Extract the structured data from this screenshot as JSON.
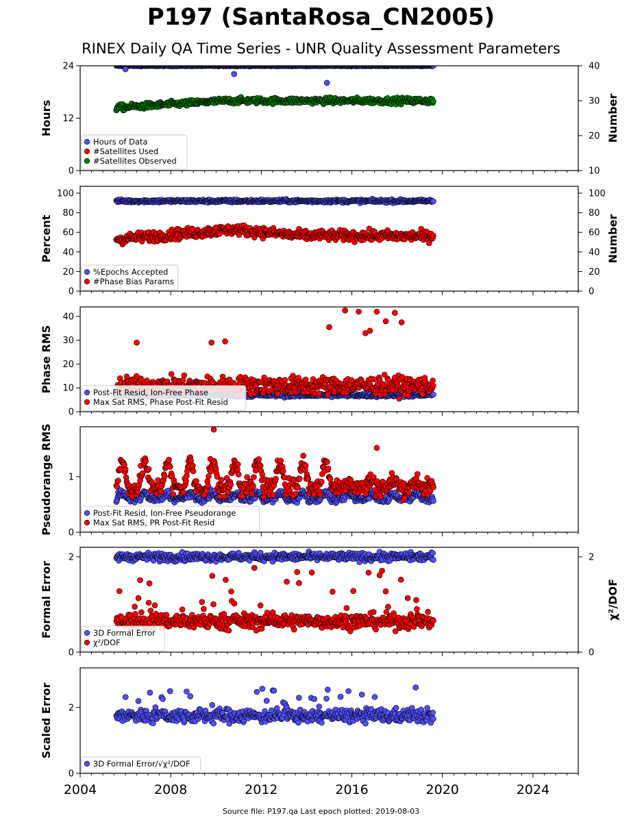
{
  "page": {
    "title": "P197 (SantaRosa_CN2005)",
    "subtitle": "RINEX Daily QA Time Series - UNR Quality Assessment Parameters",
    "source": "Source file: P197.qa Last epoch plotted: 2019-08-03"
  },
  "colors": {
    "blue": "#4f4fff",
    "red": "#ff0000",
    "green": "#008000",
    "edge": "#000000"
  },
  "chart_data": [
    {
      "type": "scatter",
      "xlim": [
        2004,
        2026
      ],
      "x_ticks": [
        "2004",
        "2008",
        "2012",
        "2016",
        "2020",
        "2024"
      ],
      "y_left_label": "Hours",
      "ylim_left": [
        0,
        24
      ],
      "y_left_ticks": [
        "0",
        "12",
        "24"
      ],
      "y_right_label": "Number",
      "ylim_right": [
        10,
        40
      ],
      "y_right_ticks": [
        "10",
        "20",
        "30",
        "40"
      ],
      "legend_position": "lower-left",
      "series": [
        {
          "name": "Hours of Data",
          "color": "blue",
          "axis": "left",
          "x_range": [
            2005.6,
            2019.6
          ],
          "base": 24.0,
          "noise": 0.1,
          "outliers": [
            [
              2006.0,
              23.2
            ],
            [
              2010.8,
              22.1
            ],
            [
              2014.9,
              20.1
            ]
          ]
        },
        {
          "name": "#Satellites Used",
          "color": "red",
          "axis": "right",
          "x_range": [
            2005.6,
            2019.6
          ],
          "points": [
            [
              2009.6,
              30.0
            ]
          ]
        },
        {
          "name": "#Satellites Observed",
          "color": "green",
          "axis": "right",
          "x_range": [
            2005.6,
            2019.6
          ],
          "levels": [
            [
              2005.6,
              28.0
            ],
            [
              2010.5,
              30.0
            ],
            [
              2019.6,
              30.0
            ]
          ],
          "noise": 0.8
        }
      ]
    },
    {
      "type": "scatter",
      "xlim": [
        2004,
        2026
      ],
      "x_ticks": [
        "2004",
        "2008",
        "2012",
        "2016",
        "2020",
        "2024"
      ],
      "y_left_label": "Percent",
      "ylim_left": [
        0,
        107
      ],
      "y_left_ticks": [
        "0",
        "20",
        "40",
        "60",
        "80",
        "100"
      ],
      "y_right_label": "Number",
      "ylim_right": [
        0,
        107
      ],
      "y_right_ticks": [
        "0",
        "20",
        "40",
        "60",
        "80",
        "100"
      ],
      "legend_position": "lower-left",
      "series": [
        {
          "name": "%Epochs Accepted",
          "color": "blue",
          "axis": "left",
          "x_range": [
            2005.6,
            2019.6
          ],
          "base": 92.0,
          "noise": 1.5
        },
        {
          "name": "#Phase Bias Params",
          "color": "red",
          "axis": "right",
          "x_range": [
            2005.6,
            2019.6
          ],
          "levels": [
            [
              2005.6,
              53
            ],
            [
              2010.8,
              63
            ],
            [
              2013.5,
              57
            ],
            [
              2019.6,
              56
            ]
          ],
          "noise": 5
        }
      ]
    },
    {
      "type": "scatter",
      "xlim": [
        2004,
        2026
      ],
      "x_ticks": [
        "2004",
        "2008",
        "2012",
        "2016",
        "2020",
        "2024"
      ],
      "y_left_label": "Phase RMS",
      "ylim_left": [
        0,
        44
      ],
      "y_left_ticks": [
        "0",
        "10",
        "20",
        "30",
        "40"
      ],
      "legend_position": "lower-left",
      "series": [
        {
          "name": "Post-Fit Resid, Ion-Free Phase",
          "color": "blue",
          "axis": "left",
          "x_range": [
            2005.6,
            2019.6
          ],
          "base": 7.0,
          "noise": 0.8
        },
        {
          "name": "Max Sat RMS, Phase Post-Fit Resid",
          "color": "red",
          "axis": "left",
          "x_range": [
            2005.6,
            2019.6
          ],
          "base": 11.0,
          "noise": 3.5,
          "outliers": [
            [
              2015.7,
              42.5
            ],
            [
              2016.3,
              42.0
            ],
            [
              2017.1,
              42.0
            ],
            [
              2017.9,
              41.5
            ],
            [
              2017.5,
              38.0
            ],
            [
              2018.2,
              37.5
            ],
            [
              2016.8,
              34.0
            ],
            [
              2015.0,
              35.5
            ],
            [
              2009.8,
              29.0
            ],
            [
              2010.4,
              29.5
            ],
            [
              2006.5,
              29.0
            ],
            [
              2016.6,
              33.0
            ]
          ]
        }
      ]
    },
    {
      "type": "scatter",
      "xlim": [
        2004,
        2026
      ],
      "x_ticks": [
        "2004",
        "2008",
        "2012",
        "2016",
        "2020",
        "2024"
      ],
      "y_left_label": "Pseudorange RMS",
      "ylim_left": [
        0,
        1.9
      ],
      "y_left_ticks": [
        "0",
        "1"
      ],
      "legend_position": "lower-left",
      "series": [
        {
          "name": "Post-Fit Resid, Ion-Free Pseudorange",
          "color": "blue",
          "axis": "left",
          "x_range": [
            2005.6,
            2019.6
          ],
          "base": 0.6,
          "seasonal_amp": 0.1,
          "noise": 0.06
        },
        {
          "name": "Max Sat RMS, PR Post-Fit Resid",
          "color": "red",
          "axis": "left",
          "x_range": [
            2005.6,
            2019.6
          ],
          "base": 0.8,
          "seasonal_amp": 0.45,
          "seasonal_until": 2015.3,
          "noise": 0.15,
          "outliers": [
            [
              2009.9,
              1.85
            ],
            [
              2017.1,
              1.52
            ]
          ]
        }
      ]
    },
    {
      "type": "scatter",
      "xlim": [
        2004,
        2026
      ],
      "x_ticks": [
        "2004",
        "2008",
        "2012",
        "2016",
        "2020",
        "2024"
      ],
      "y_left_label": "Formal Error",
      "ylim_left": [
        0,
        2.2
      ],
      "y_left_ticks": [
        "0",
        "2"
      ],
      "y_right_label": "χ²/DOF",
      "ylim_right": [
        0,
        2.2
      ],
      "y_right_ticks": [
        "0",
        "2"
      ],
      "legend_position": "lower-left",
      "series": [
        {
          "name": "3D Formal Error",
          "color": "blue",
          "axis": "left",
          "x_range": [
            2005.6,
            2019.6
          ],
          "base": 2.0,
          "noise": 0.08
        },
        {
          "name": "χ²/DOF",
          "color": "red",
          "axis": "right",
          "x_range": [
            2005.6,
            2019.6
          ],
          "base": 0.65,
          "noise": 0.15,
          "spikes": 1.2
        }
      ]
    },
    {
      "type": "scatter",
      "xlim": [
        2004,
        2026
      ],
      "x_ticks": [
        "2004",
        "2008",
        "2012",
        "2016",
        "2020",
        "2024"
      ],
      "y_left_label": "Scaled Error",
      "ylim_left": [
        0,
        3.2
      ],
      "y_left_ticks": [
        "0",
        "2"
      ],
      "legend_position": "lower-left",
      "series": [
        {
          "name": "3D Formal Error/√χ²/DOF",
          "color": "blue",
          "axis": "left",
          "x_range": [
            2005.6,
            2019.6
          ],
          "base": 1.75,
          "noise": 0.2,
          "spikes": 0.9
        }
      ]
    }
  ]
}
